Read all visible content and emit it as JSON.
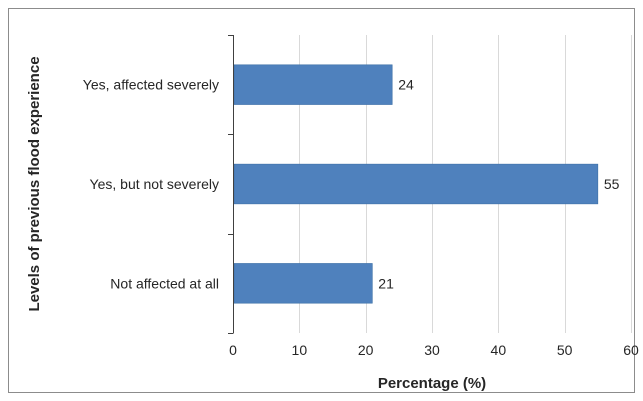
{
  "chart_data": {
    "type": "bar",
    "orientation": "horizontal",
    "categories": [
      "Yes, affected severely",
      "Yes, but not severely",
      "Not affected at all"
    ],
    "values": [
      24,
      55,
      21
    ],
    "data_labels": [
      "24",
      "55",
      "21"
    ],
    "xlabel": "Percentage (%)",
    "ylabel": "Levels of previous flood experience",
    "xlim": [
      0,
      60
    ],
    "xticks": [
      "0",
      "10",
      "20",
      "30",
      "40",
      "50",
      "60"
    ],
    "grid": "vertical",
    "colors": {
      "bar": "#4f81bd"
    }
  }
}
